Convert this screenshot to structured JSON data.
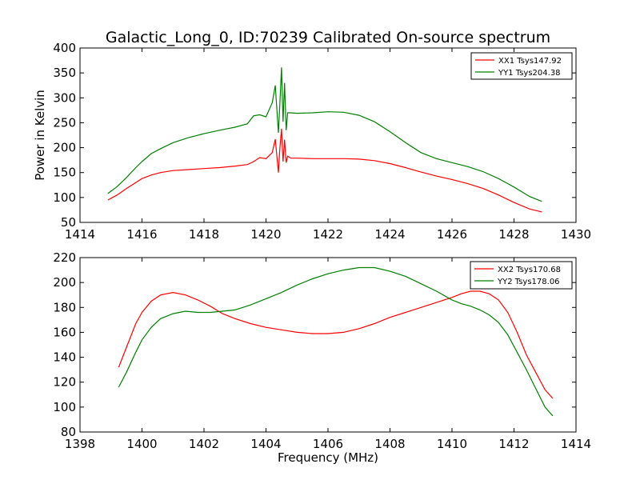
{
  "figure": {
    "title": "Galactic_Long_0, ID:70239 Calibrated On-source spectrum",
    "ylabel": "Power in Kelvin",
    "xlabel": "Frequency (MHz)"
  },
  "chart_data": [
    {
      "type": "line",
      "title": "Galactic_Long_0, ID:70239 Calibrated On-source spectrum",
      "xlabel": "",
      "ylabel": "Power in Kelvin",
      "xlim": [
        1414,
        1430
      ],
      "ylim": [
        50,
        400
      ],
      "xticks": [
        1414,
        1416,
        1418,
        1420,
        1422,
        1424,
        1426,
        1428,
        1430
      ],
      "yticks": [
        50,
        100,
        150,
        200,
        250,
        300,
        350,
        400
      ],
      "grid": false,
      "legend": "top-right",
      "series": [
        {
          "name": "XX1 Tsys147.92",
          "color": "#ff0000",
          "x": [
            1414.9,
            1415.2,
            1415.5,
            1415.8,
            1416.0,
            1416.3,
            1416.6,
            1417.0,
            1417.5,
            1418.0,
            1418.5,
            1419.0,
            1419.4,
            1419.6,
            1419.8,
            1420.0,
            1420.2,
            1420.3,
            1420.4,
            1420.45,
            1420.5,
            1420.55,
            1420.6,
            1420.65,
            1420.7,
            1420.8,
            1421.0,
            1421.5,
            1422.0,
            1422.5,
            1423.0,
            1423.5,
            1424.0,
            1424.5,
            1425.0,
            1425.5,
            1426.0,
            1426.5,
            1427.0,
            1427.5,
            1428.0,
            1428.5,
            1428.9
          ],
          "values": [
            95,
            105,
            118,
            130,
            138,
            145,
            150,
            154,
            156,
            158,
            160,
            163,
            166,
            172,
            180,
            178,
            190,
            217,
            150,
            200,
            238,
            172,
            216,
            170,
            183,
            179,
            179,
            178,
            178,
            178,
            177,
            174,
            168,
            160,
            151,
            143,
            136,
            128,
            118,
            105,
            90,
            77,
            71
          ]
        },
        {
          "name": "YY1 Tsys204.38",
          "color": "#008000",
          "x": [
            1414.9,
            1415.2,
            1415.5,
            1415.8,
            1416.0,
            1416.3,
            1416.6,
            1417.0,
            1417.5,
            1418.0,
            1418.5,
            1419.0,
            1419.4,
            1419.6,
            1419.8,
            1420.0,
            1420.2,
            1420.3,
            1420.4,
            1420.45,
            1420.5,
            1420.55,
            1420.6,
            1420.65,
            1420.7,
            1420.8,
            1421.0,
            1421.5,
            1422.0,
            1422.5,
            1423.0,
            1423.5,
            1424.0,
            1424.5,
            1425.0,
            1425.5,
            1426.0,
            1426.5,
            1427.0,
            1427.5,
            1428.0,
            1428.5,
            1428.9
          ],
          "values": [
            108,
            122,
            140,
            160,
            172,
            188,
            198,
            210,
            220,
            228,
            235,
            241,
            248,
            264,
            266,
            262,
            290,
            325,
            230,
            290,
            361,
            252,
            330,
            235,
            270,
            270,
            269,
            270,
            272,
            271,
            265,
            252,
            232,
            210,
            190,
            178,
            170,
            162,
            152,
            138,
            121,
            102,
            92
          ]
        }
      ]
    },
    {
      "type": "line",
      "title": "",
      "xlabel": "Frequency (MHz)",
      "ylabel": "",
      "xlim": [
        1398,
        1414
      ],
      "ylim": [
        80,
        220
      ],
      "xticks": [
        1398,
        1400,
        1402,
        1404,
        1406,
        1408,
        1410,
        1412,
        1414
      ],
      "yticks": [
        80,
        100,
        120,
        140,
        160,
        180,
        200,
        220
      ],
      "grid": false,
      "legend": "top-right",
      "series": [
        {
          "name": "XX2 Tsys170.68",
          "color": "#ff0000",
          "x": [
            1399.25,
            1399.5,
            1399.8,
            1400.0,
            1400.3,
            1400.6,
            1401.0,
            1401.4,
            1401.8,
            1402.2,
            1402.6,
            1403.0,
            1403.5,
            1404.0,
            1404.5,
            1405.0,
            1405.5,
            1406.0,
            1406.5,
            1407.0,
            1407.5,
            1408.0,
            1408.5,
            1409.0,
            1409.5,
            1410.0,
            1410.3,
            1410.6,
            1410.9,
            1411.2,
            1411.5,
            1411.8,
            1412.1,
            1412.4,
            1412.7,
            1413.0,
            1413.25
          ],
          "values": [
            132,
            148,
            167,
            176,
            185,
            190,
            192,
            190,
            186,
            181,
            175,
            171,
            167,
            164,
            162,
            160,
            159,
            159,
            160,
            163,
            167,
            172,
            176,
            180,
            184,
            188,
            191,
            193,
            193,
            191,
            186,
            176,
            160,
            142,
            128,
            114,
            107
          ]
        },
        {
          "name": "YY2 Tsys178.06",
          "color": "#008000",
          "x": [
            1399.25,
            1399.5,
            1399.8,
            1400.0,
            1400.3,
            1400.6,
            1401.0,
            1401.4,
            1401.8,
            1402.2,
            1402.6,
            1403.0,
            1403.5,
            1404.0,
            1404.5,
            1405.0,
            1405.5,
            1406.0,
            1406.5,
            1407.0,
            1407.5,
            1408.0,
            1408.5,
            1409.0,
            1409.5,
            1410.0,
            1410.3,
            1410.6,
            1410.9,
            1411.2,
            1411.5,
            1411.8,
            1412.1,
            1412.4,
            1412.7,
            1413.0,
            1413.25
          ],
          "values": [
            116,
            128,
            144,
            154,
            164,
            171,
            175,
            177,
            176,
            176,
            177,
            178,
            182,
            187,
            192,
            198,
            203,
            207,
            210,
            212,
            212,
            209,
            205,
            199,
            193,
            186,
            183,
            181,
            178,
            174,
            168,
            158,
            144,
            130,
            115,
            100,
            93
          ]
        }
      ]
    }
  ]
}
